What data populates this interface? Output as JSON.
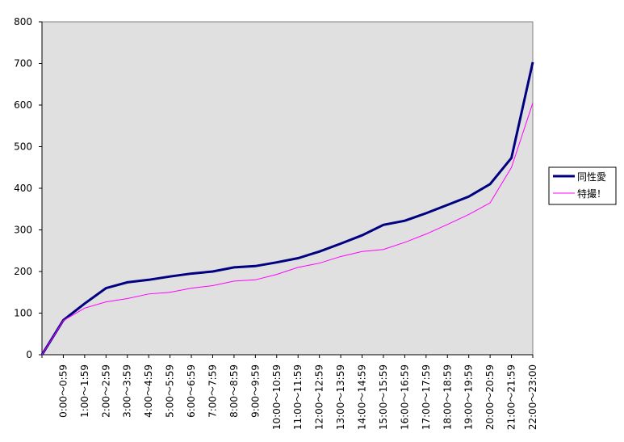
{
  "chart_data": {
    "type": "line",
    "categories": [
      null,
      "0:00～0:59",
      "1:00～1:59",
      "2:00～2:59",
      "3:00～3:59",
      "4:00～4:59",
      "5:00～5:59",
      "6:00～6:59",
      "7:00～7:59",
      "8:00～8:59",
      "9:00～9:59",
      "10:00～10:59",
      "11:00～11:59",
      "12:00～12:59",
      "13:00～13:59",
      "14:00～14:59",
      "15:00～15:59",
      "16:00～16:59",
      "17:00～17:59",
      "18:00～18:59",
      "19:00～19:59",
      "20:00～20:59",
      "21:00～21:59",
      "22:00～23:00"
    ],
    "series": [
      {
        "name": "同性愛",
        "color": "#000080",
        "values": [
          0,
          83,
          123,
          160,
          174,
          180,
          188,
          195,
          200,
          210,
          213,
          222,
          232,
          248,
          267,
          287,
          312,
          322,
          340,
          360,
          380,
          410,
          473,
          703
        ]
      },
      {
        "name": "特撮！",
        "color": "#ff00ff",
        "values": [
          0,
          82,
          112,
          127,
          135,
          146,
          150,
          160,
          166,
          177,
          180,
          193,
          210,
          220,
          236,
          248,
          253,
          270,
          290,
          313,
          337,
          365,
          450,
          605
        ]
      }
    ],
    "ylim": [
      0,
      800
    ],
    "yticks": [
      0,
      100,
      200,
      300,
      400,
      500,
      600,
      700,
      800
    ],
    "legend": "right"
  }
}
